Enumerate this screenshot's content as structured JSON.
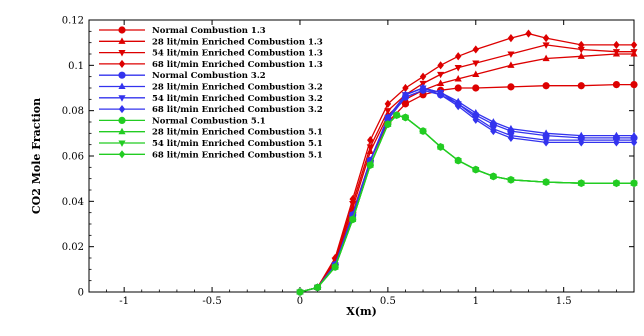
{
  "chart_data": {
    "type": "line",
    "title": "",
    "xlabel": "X(m)",
    "ylabel": "CO2 Mole Fraction",
    "xlim": [
      -1.2,
      1.9
    ],
    "ylim": [
      0,
      0.12
    ],
    "x_ticks": [
      -1,
      -0.5,
      0,
      0.5,
      1,
      1.5
    ],
    "x_tick_labels": [
      "-1",
      "-0.5",
      "0",
      "0.5",
      "1",
      "1.5"
    ],
    "y_ticks": [
      0,
      0.02,
      0.04,
      0.06,
      0.08,
      0.1,
      0.12
    ],
    "y_tick_labels": [
      "0",
      "0.02",
      "0.04",
      "0.06",
      "0.08",
      "0.1",
      "0.12"
    ],
    "grid": false,
    "legend_position": "top-left",
    "series": [
      {
        "name": "Normal Combustion  1.3",
        "color": "#dd0000",
        "marker": "circle",
        "x": [
          0,
          0.1,
          0.2,
          0.3,
          0.4,
          0.5,
          0.6,
          0.7,
          0.8,
          0.9,
          1.0,
          1.2,
          1.4,
          1.6,
          1.8,
          1.9
        ],
        "y": [
          0,
          0.002,
          0.012,
          0.035,
          0.058,
          0.075,
          0.083,
          0.087,
          0.089,
          0.09,
          0.09,
          0.0905,
          0.091,
          0.091,
          0.0915,
          0.0915
        ]
      },
      {
        "name": "28 lit/min Enriched Combustion  1.3",
        "color": "#dd0000",
        "marker": "triangle-up",
        "x": [
          0,
          0.1,
          0.2,
          0.3,
          0.4,
          0.5,
          0.6,
          0.7,
          0.8,
          0.9,
          1.0,
          1.2,
          1.4,
          1.6,
          1.8,
          1.9
        ],
        "y": [
          0,
          0.002,
          0.013,
          0.037,
          0.062,
          0.078,
          0.085,
          0.089,
          0.092,
          0.094,
          0.096,
          0.1,
          0.103,
          0.104,
          0.105,
          0.105
        ]
      },
      {
        "name": "54 lit/min Enriched Combustion  1.3",
        "color": "#dd0000",
        "marker": "triangle-down",
        "x": [
          0,
          0.1,
          0.2,
          0.3,
          0.4,
          0.5,
          0.6,
          0.7,
          0.8,
          0.9,
          1.0,
          1.2,
          1.4,
          1.6,
          1.8,
          1.9
        ],
        "y": [
          0,
          0.002,
          0.014,
          0.039,
          0.064,
          0.08,
          0.087,
          0.092,
          0.096,
          0.099,
          0.101,
          0.105,
          0.109,
          0.107,
          0.106,
          0.106
        ]
      },
      {
        "name": "68 lit/min Enriched Combustion  1.3",
        "color": "#dd0000",
        "marker": "diamond",
        "x": [
          0,
          0.1,
          0.2,
          0.3,
          0.4,
          0.5,
          0.6,
          0.7,
          0.8,
          0.9,
          1.0,
          1.2,
          1.3,
          1.4,
          1.6,
          1.8,
          1.9
        ],
        "y": [
          0,
          0.002,
          0.015,
          0.041,
          0.067,
          0.083,
          0.09,
          0.095,
          0.1,
          0.104,
          0.107,
          0.112,
          0.114,
          0.112,
          0.109,
          0.109,
          0.109
        ]
      },
      {
        "name": "Normal Combustion  3.2",
        "color": "#3333ee",
        "marker": "circle",
        "x": [
          0,
          0.1,
          0.2,
          0.3,
          0.4,
          0.5,
          0.6,
          0.7,
          0.8,
          0.9,
          1.0,
          1.1,
          1.2,
          1.4,
          1.6,
          1.8,
          1.9
        ],
        "y": [
          0,
          0.002,
          0.012,
          0.034,
          0.058,
          0.076,
          0.086,
          0.089,
          0.087,
          0.083,
          0.078,
          0.074,
          0.071,
          0.069,
          0.068,
          0.068,
          0.068
        ]
      },
      {
        "name": "28 lit/min Enriched Combustion  3.2",
        "color": "#3333ee",
        "marker": "triangle-up",
        "x": [
          0,
          0.1,
          0.2,
          0.3,
          0.4,
          0.5,
          0.6,
          0.7,
          0.8,
          0.9,
          1.0,
          1.1,
          1.2,
          1.4,
          1.6,
          1.8,
          1.9
        ],
        "y": [
          0,
          0.002,
          0.012,
          0.034,
          0.058,
          0.077,
          0.087,
          0.09,
          0.088,
          0.084,
          0.079,
          0.075,
          0.072,
          0.07,
          0.069,
          0.069,
          0.069
        ]
      },
      {
        "name": "54 lit/min Enriched Combustion  3.2",
        "color": "#3333ee",
        "marker": "triangle-down",
        "x": [
          0,
          0.1,
          0.2,
          0.3,
          0.4,
          0.5,
          0.6,
          0.7,
          0.8,
          0.9,
          1.0,
          1.1,
          1.2,
          1.4,
          1.6,
          1.8,
          1.9
        ],
        "y": [
          0,
          0.002,
          0.012,
          0.034,
          0.058,
          0.077,
          0.087,
          0.09,
          0.088,
          0.083,
          0.077,
          0.072,
          0.069,
          0.067,
          0.067,
          0.067,
          0.067
        ]
      },
      {
        "name": "68 lit/min Enriched Combustion  3.2",
        "color": "#3333ee",
        "marker": "diamond",
        "x": [
          0,
          0.1,
          0.2,
          0.3,
          0.4,
          0.5,
          0.6,
          0.7,
          0.8,
          0.9,
          1.0,
          1.1,
          1.2,
          1.4,
          1.6,
          1.8,
          1.9
        ],
        "y": [
          0,
          0.002,
          0.012,
          0.034,
          0.058,
          0.077,
          0.087,
          0.09,
          0.087,
          0.082,
          0.076,
          0.071,
          0.068,
          0.066,
          0.066,
          0.066,
          0.066
        ]
      },
      {
        "name": "Normal Combustion  5.1",
        "color": "#22cc22",
        "marker": "circle",
        "x": [
          0,
          0.1,
          0.2,
          0.3,
          0.4,
          0.5,
          0.55,
          0.6,
          0.7,
          0.8,
          0.9,
          1.0,
          1.1,
          1.2,
          1.4,
          1.6,
          1.8,
          1.9
        ],
        "y": [
          0,
          0.002,
          0.011,
          0.032,
          0.056,
          0.074,
          0.078,
          0.077,
          0.071,
          0.064,
          0.058,
          0.054,
          0.051,
          0.0495,
          0.0485,
          0.048,
          0.048,
          0.048
        ]
      },
      {
        "name": "28 lit/min Enriched Combustion  5.1",
        "color": "#22cc22",
        "marker": "triangle-up",
        "x": [
          0,
          0.1,
          0.2,
          0.3,
          0.4,
          0.5,
          0.55,
          0.6,
          0.7,
          0.8,
          0.9,
          1.0,
          1.1,
          1.2,
          1.4,
          1.6,
          1.8,
          1.9
        ],
        "y": [
          0,
          0.002,
          0.011,
          0.032,
          0.056,
          0.074,
          0.078,
          0.077,
          0.071,
          0.064,
          0.058,
          0.054,
          0.051,
          0.0495,
          0.0485,
          0.048,
          0.048,
          0.048
        ]
      },
      {
        "name": "54 lit/min Enriched Combustion  5.1",
        "color": "#22cc22",
        "marker": "triangle-down",
        "x": [
          0,
          0.1,
          0.2,
          0.3,
          0.4,
          0.5,
          0.55,
          0.6,
          0.7,
          0.8,
          0.9,
          1.0,
          1.1,
          1.2,
          1.4,
          1.6,
          1.8,
          1.9
        ],
        "y": [
          0,
          0.002,
          0.011,
          0.032,
          0.056,
          0.074,
          0.078,
          0.077,
          0.071,
          0.064,
          0.058,
          0.054,
          0.051,
          0.0495,
          0.0485,
          0.048,
          0.048,
          0.048
        ]
      },
      {
        "name": "68 lit/min Enriched Combustion  5.1",
        "color": "#22cc22",
        "marker": "diamond",
        "x": [
          0,
          0.1,
          0.2,
          0.3,
          0.4,
          0.5,
          0.55,
          0.6,
          0.7,
          0.8,
          0.9,
          1.0,
          1.1,
          1.2,
          1.4,
          1.6,
          1.8,
          1.9
        ],
        "y": [
          0,
          0.002,
          0.011,
          0.032,
          0.056,
          0.074,
          0.078,
          0.077,
          0.071,
          0.064,
          0.058,
          0.054,
          0.051,
          0.0495,
          0.0485,
          0.048,
          0.048,
          0.048
        ]
      }
    ]
  }
}
